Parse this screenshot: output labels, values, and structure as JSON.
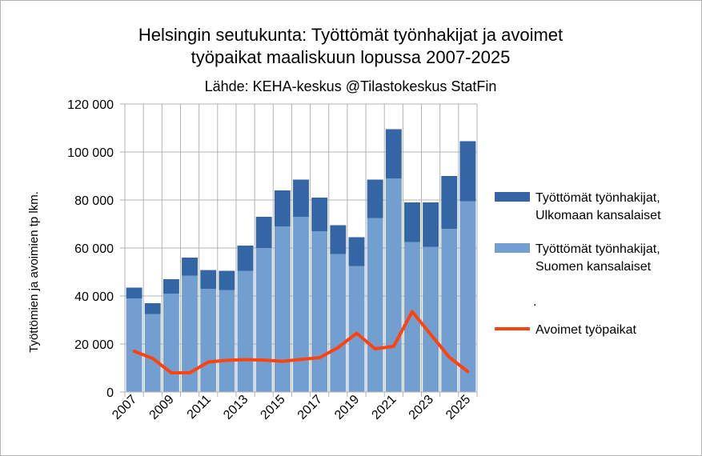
{
  "chart_data": {
    "type": "bar",
    "title_line1": "Helsingin seutukunta: Työttömät työnhakijat ja avoimet",
    "title_line2": "työpaikat maaliskuun lopussa 2007-2025",
    "subtitle": "Lähde: KEHA-keskus @Tilastokeskus StatFin",
    "ylabel": "Työttömien ja avoimien tp lkm.",
    "xlabel": "",
    "ylim": [
      0,
      120000
    ],
    "y_ticks": [
      "0",
      "20 000",
      "40 000",
      "60 000",
      "80 000",
      "100 000",
      "120 000"
    ],
    "categories": [
      "2007",
      "2008",
      "2009",
      "2010",
      "2011",
      "2012",
      "2013",
      "2014",
      "2015",
      "2016",
      "2017",
      "2018",
      "2019",
      "2020",
      "2021",
      "2022",
      "2023",
      "2024",
      "2025"
    ],
    "x_tick_labels": [
      "2007",
      "2009",
      "2011",
      "2013",
      "2015",
      "2017",
      "2019",
      "2021",
      "2023",
      "2025"
    ],
    "series": [
      {
        "name": "Työttömät työnhakijat, Suomen kansalaiset",
        "kind": "bar-stacked",
        "color": "#729fcf",
        "values": [
          39000,
          32500,
          41000,
          48500,
          43000,
          42500,
          50500,
          60000,
          69000,
          73000,
          67000,
          57500,
          52500,
          72500,
          89000,
          62500,
          60500,
          68000,
          79500
        ]
      },
      {
        "name": "Työttömät työnhakijat, Ulkomaan kansalaiset",
        "kind": "bar-stacked",
        "color": "#3465a4",
        "values": [
          4500,
          4500,
          6000,
          7500,
          7800,
          8000,
          10500,
          13000,
          15000,
          15500,
          14000,
          12000,
          12000,
          16000,
          20500,
          16500,
          18500,
          22000,
          25000
        ]
      },
      {
        "name": "Avoimet työpaikat",
        "kind": "line",
        "color": "#ff420e",
        "values": [
          17000,
          14000,
          8000,
          8000,
          12500,
          13200,
          13500,
          13300,
          12800,
          13600,
          14300,
          18500,
          24500,
          18000,
          19000,
          33500,
          24000,
          14500,
          8500
        ]
      }
    ],
    "legend": {
      "position": "right",
      "entries": [
        {
          "line1": "Työttömät työnhakijat,",
          "line2": "Ulkomaan kansalaiset",
          "color": "#3465a4",
          "kind": "box"
        },
        {
          "line1": "Työttömät työnhakijat,",
          "line2": "Suomen kansalaiset",
          "color": "#729fcf",
          "kind": "box"
        },
        {
          "line1": ".",
          "line2": "",
          "color": "",
          "kind": "none"
        },
        {
          "line1": "Avoimet työpaikat",
          "line2": "",
          "color": "#ff420e",
          "kind": "line"
        }
      ]
    },
    "grid": true
  }
}
